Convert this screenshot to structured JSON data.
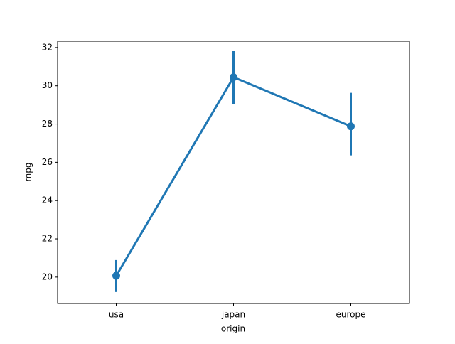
{
  "chart_data": {
    "type": "pointplot",
    "x_label": "origin",
    "y_label": "mpg",
    "categories": [
      "usa",
      "japan",
      "europe"
    ],
    "values": [
      20.07,
      30.45,
      27.88
    ],
    "ci_low": [
      19.22,
      29.03,
      26.36
    ],
    "ci_high": [
      20.89,
      31.81,
      29.63
    ],
    "color": "#1f77b4",
    "ylim": [
      18.62,
      32.33
    ],
    "yticks": [
      20,
      22,
      24,
      26,
      28,
      30,
      32
    ]
  }
}
